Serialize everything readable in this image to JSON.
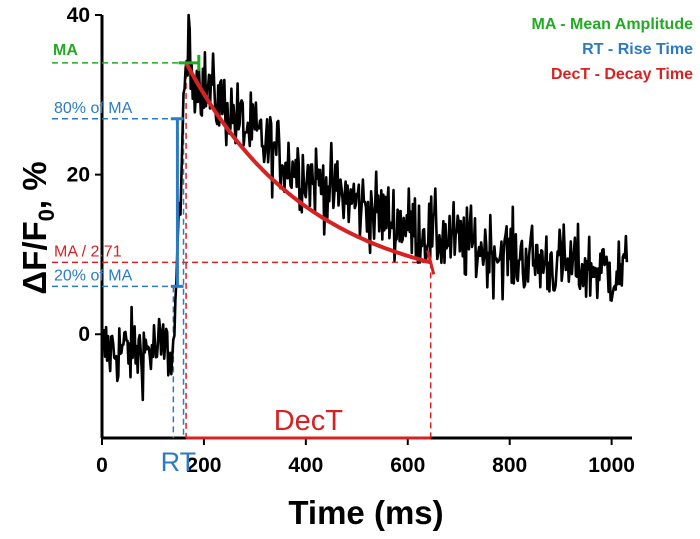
{
  "chart_data": {
    "type": "line",
    "xlabel": "Time (ms)",
    "ylabel_parts": {
      "delta": "ΔF/F",
      "sub": "0",
      "unit": ", %"
    },
    "xlim": [
      0,
      1040
    ],
    "ylim": [
      -13,
      40
    ],
    "xticks": [
      0,
      200,
      400,
      600,
      800,
      1000
    ],
    "yticks": [
      0,
      20,
      40
    ],
    "legend": [
      {
        "text": "MA - Mean Amplitude",
        "color": "#22aa22"
      },
      {
        "text": "RT - Rise Time",
        "color": "#2b7bc4"
      },
      {
        "text": "DecT - Decay Time",
        "color": "#d62222"
      }
    ],
    "levels": {
      "ma": {
        "label": "MA",
        "y": 34,
        "color": "#22aa22"
      },
      "p80": {
        "label": "80% of MA",
        "y": 27,
        "color": "#2b7bc4"
      },
      "ma_e": {
        "label": "MA / 2.71",
        "y": 9,
        "color": "#d62222"
      },
      "p20": {
        "label": "20% of MA",
        "y": 6,
        "color": "#2b7bc4"
      }
    },
    "rt": {
      "label": "RT",
      "x_start": 140,
      "x_end": 160
    },
    "dect": {
      "label": "DecT",
      "x_start": 165,
      "x_end": 645,
      "y_start": 34,
      "y_end": 9
    },
    "baseline": {
      "x_end": 140,
      "mean": -2,
      "noise": 4
    },
    "decay_tail_mean": 5,
    "trace_end_x": 1030,
    "series": [
      {
        "name": "ΔF/F0 trace",
        "color": "#000000",
        "sample_step_ms": 2
      }
    ]
  }
}
